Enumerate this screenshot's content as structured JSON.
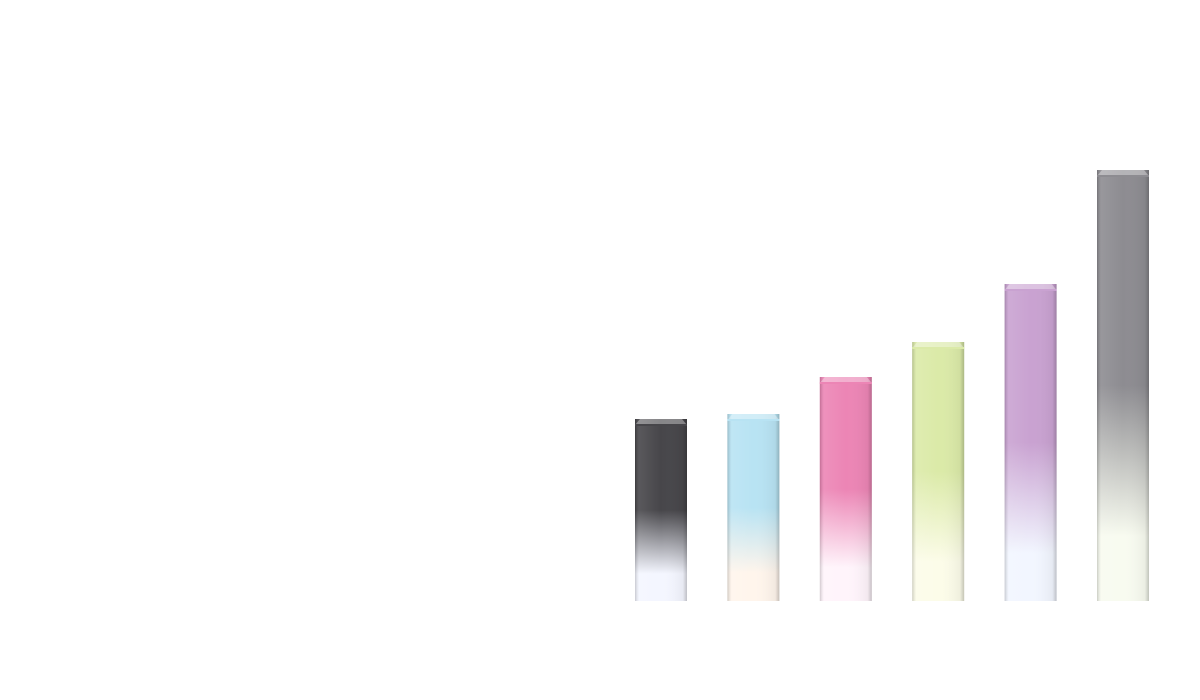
{
  "chart_data": {
    "type": "bar",
    "categories": [
      "",
      "",
      "",
      "",
      "",
      ""
    ],
    "values": [
      18.2,
      18.7,
      22.4,
      25.9,
      31.7,
      43.1
    ],
    "ylim": [
      0,
      60
    ],
    "grid": false,
    "legend": "none",
    "colors": [
      "#47464a",
      "#b8e3f3",
      "#ec85b5",
      "#dbeaa8",
      "#c9a2d1",
      "#8d8c91"
    ],
    "fade_colors": [
      "#f4f6ff",
      "#fff5ec",
      "#fff4fb",
      "#fcfce9",
      "#f2f6ff",
      "#f8fbf0"
    ]
  }
}
